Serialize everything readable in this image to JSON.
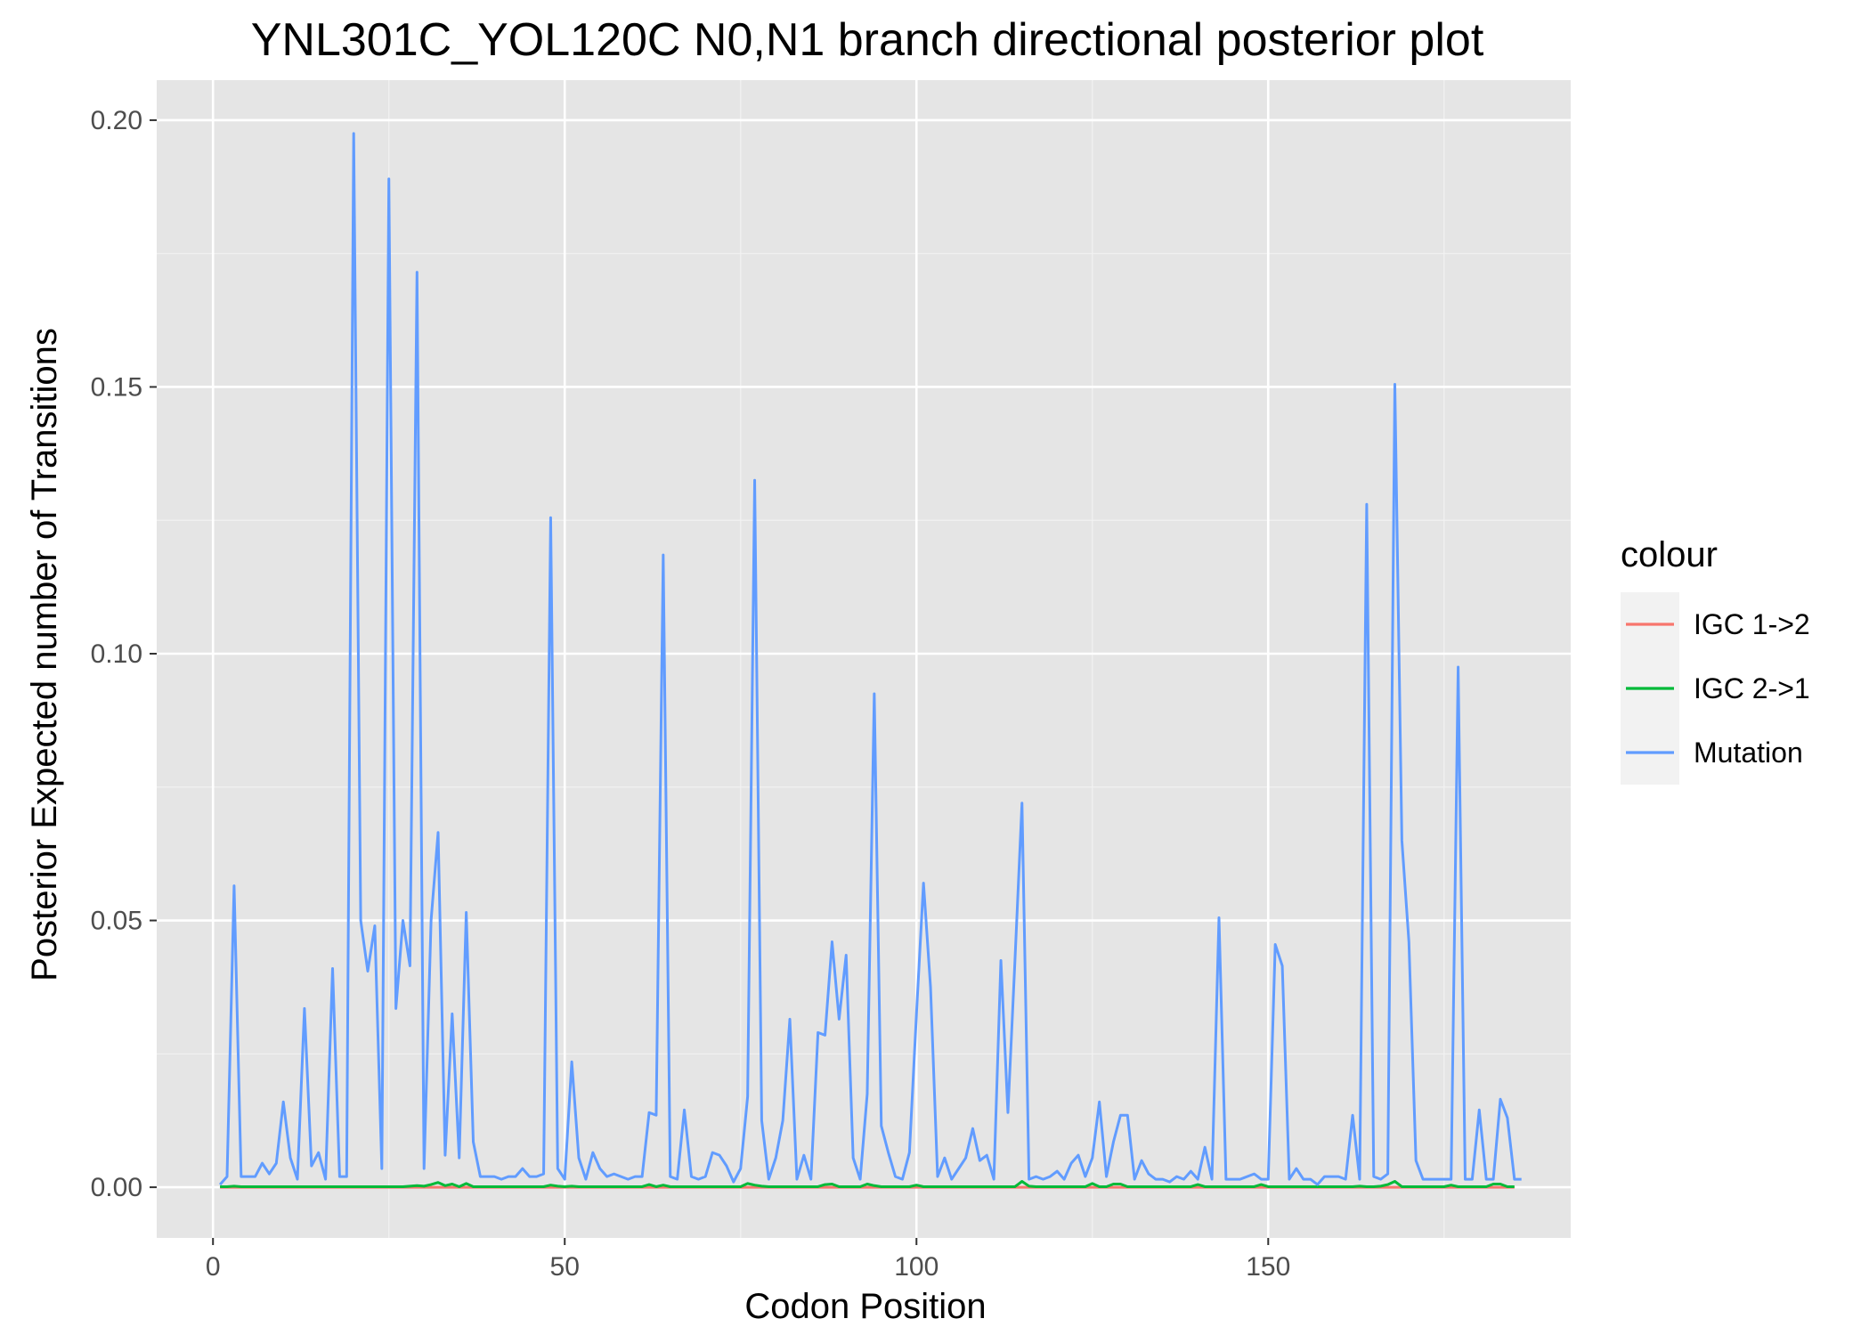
{
  "chart_data": {
    "type": "line",
    "title": "YNL301C_YOL120C N0,N1 branch directional posterior plot",
    "xlabel": "Codon Position",
    "ylabel": "Posterior Expected number of Transitions",
    "xlim": [
      -8,
      193
    ],
    "ylim": [
      -0.0095,
      0.2075
    ],
    "x_ticks": [
      0,
      50,
      100,
      150
    ],
    "x_tick_labels": [
      "0",
      "50",
      "100",
      "150"
    ],
    "y_ticks": [
      0.0,
      0.05,
      0.1,
      0.15,
      0.2
    ],
    "y_tick_labels": [
      "0.00",
      "0.05",
      "0.10",
      "0.15",
      "0.20"
    ],
    "grid": true,
    "legend": {
      "title": "colour",
      "position": "right"
    },
    "series": [
      {
        "name": "IGC 1->2",
        "color": "#F8766D",
        "x_start": 1,
        "values": [
          0,
          0,
          0,
          0,
          0,
          0,
          0,
          0,
          0,
          0,
          0,
          0,
          0,
          0,
          0,
          0,
          0,
          0,
          0,
          0,
          0,
          0,
          0,
          0,
          0,
          0,
          0,
          0,
          0,
          0,
          0,
          0,
          0,
          0,
          0,
          0,
          0,
          0,
          0,
          0,
          0,
          0,
          0,
          0,
          0,
          0,
          0,
          0,
          0,
          0,
          0,
          0,
          0,
          0,
          0,
          0,
          0,
          0,
          0,
          0,
          0,
          0,
          0,
          0,
          0,
          0,
          0,
          0,
          0,
          0,
          0,
          0,
          0,
          0,
          0,
          0,
          0,
          0,
          0,
          0,
          0,
          0,
          0,
          0,
          0,
          0,
          0,
          0,
          0,
          0,
          0,
          0,
          0,
          0,
          0,
          0,
          0,
          0,
          0,
          0,
          0,
          0,
          0,
          0,
          0,
          0,
          0,
          0,
          0,
          0,
          0,
          0,
          0,
          0,
          0,
          0,
          0,
          0,
          0,
          0,
          0,
          0,
          0,
          0,
          0,
          0,
          0,
          0,
          0,
          0,
          0,
          0,
          0,
          0,
          0,
          0,
          0,
          0,
          0,
          0,
          0,
          0,
          0,
          0,
          0,
          0,
          0,
          0,
          0,
          0,
          0,
          0,
          0,
          0,
          0,
          0,
          0,
          0,
          0,
          0,
          0,
          0,
          0,
          0,
          0,
          0,
          0,
          0,
          0,
          0,
          0,
          0,
          0,
          0,
          0,
          0,
          0,
          0,
          0,
          0,
          0,
          0,
          0,
          0,
          0
        ]
      },
      {
        "name": "IGC 2->1",
        "color": "#00BA38",
        "x_start": 1,
        "values": [
          0.0001,
          0.0001,
          0.0002,
          0.0001,
          0.0001,
          0.0001,
          0.0001,
          0.0001,
          0.0001,
          0.0001,
          0.0001,
          0.0001,
          0.0001,
          0.0001,
          0.0001,
          0.0001,
          0.0001,
          0.0001,
          0.0001,
          0.0001,
          0.0001,
          0.0001,
          0.0001,
          0.0001,
          0.0001,
          0.0001,
          0.0001,
          0.0002,
          0.0003,
          0.0002,
          0.0005,
          0.0009,
          0.0003,
          0.0006,
          0.0001,
          0.0007,
          0.0001,
          0.0001,
          0.0001,
          0.0001,
          0.0001,
          0.0001,
          0.0001,
          0.0001,
          0.0001,
          0.0001,
          0.0001,
          0.0004,
          0.0002,
          0.0001,
          0.0002,
          0.0001,
          0.0001,
          0.0001,
          0.0001,
          0.0001,
          0.0001,
          0.0001,
          0.0001,
          0.0001,
          0.0001,
          0.0005,
          0.0001,
          0.0004,
          0.0001,
          0.0001,
          0.0001,
          0.0001,
          0.0001,
          0.0001,
          0.0001,
          0.0001,
          0.0001,
          0.0001,
          0.0001,
          0.0007,
          0.0004,
          0.0002,
          0.0001,
          0.0001,
          0.0001,
          0.0001,
          0.0001,
          0.0001,
          0.0001,
          0.0001,
          0.0005,
          0.0006,
          0.0001,
          0.0001,
          0.0001,
          0.0001,
          0.0006,
          0.0003,
          0.0001,
          0.0001,
          0.0001,
          0.0001,
          0.0001,
          0.0004,
          0.0001,
          0.0001,
          0.0001,
          0.0001,
          0.0001,
          0.0001,
          0.0001,
          0.0001,
          0.0001,
          0.0001,
          0.0001,
          0.0001,
          0.0001,
          0.0001,
          0.0011,
          0.0002,
          0.0001,
          0.0001,
          0.0001,
          0.0001,
          0.0001,
          0.0001,
          0.0001,
          0.0001,
          0.0007,
          0.0001,
          0.0001,
          0.0006,
          0.0006,
          0.0001,
          0.0001,
          0.0001,
          0.0001,
          0.0001,
          0.0001,
          0.0001,
          0.0001,
          0.0001,
          0.0001,
          0.0005,
          0.0001,
          0.0001,
          0.0001,
          0.0001,
          0.0001,
          0.0001,
          0.0001,
          0.0001,
          0.0005,
          0.0001,
          0.0001,
          0.0001,
          0.0001,
          0.0001,
          0.0001,
          0.0001,
          0.0001,
          0.0001,
          0.0001,
          0.0001,
          0.0001,
          0.0001,
          0.0002,
          0.0001,
          0.0001,
          0.0002,
          0.0005,
          0.0011,
          0.0001,
          0.0001,
          0.0001,
          0.0001,
          0.0001,
          0.0001,
          0.0001,
          0.0004,
          0.0001,
          0.0001,
          0.0001,
          0.0001,
          0.0001,
          0.0006,
          0.0006,
          0.0001,
          0.0001
        ]
      },
      {
        "name": "Mutation",
        "color": "#619CFF",
        "x_start": 1,
        "values": [
          0.0005,
          0.002,
          0.0565,
          0.002,
          0.002,
          0.002,
          0.0045,
          0.0025,
          0.0045,
          0.016,
          0.0055,
          0.0015,
          0.0335,
          0.004,
          0.0065,
          0.0015,
          0.041,
          0.002,
          0.002,
          0.1975,
          0.05,
          0.0405,
          0.049,
          0.0035,
          0.189,
          0.0335,
          0.05,
          0.0415,
          0.1715,
          0.0035,
          0.05,
          0.0665,
          0.006,
          0.0325,
          0.0055,
          0.0515,
          0.0085,
          0.002,
          0.002,
          0.002,
          0.0015,
          0.002,
          0.002,
          0.0035,
          0.002,
          0.002,
          0.0025,
          0.1255,
          0.0035,
          0.0015,
          0.0235,
          0.0055,
          0.0015,
          0.0065,
          0.0035,
          0.002,
          0.0025,
          0.002,
          0.0015,
          0.002,
          0.002,
          0.014,
          0.0135,
          0.1185,
          0.002,
          0.0015,
          0.0145,
          0.002,
          0.0015,
          0.002,
          0.0065,
          0.006,
          0.004,
          0.001,
          0.0035,
          0.017,
          0.1325,
          0.0125,
          0.0015,
          0.0055,
          0.0125,
          0.0315,
          0.0015,
          0.006,
          0.0015,
          0.029,
          0.0285,
          0.046,
          0.0315,
          0.0435,
          0.0055,
          0.0015,
          0.0175,
          0.0925,
          0.0115,
          0.0065,
          0.002,
          0.0015,
          0.0065,
          0.0325,
          0.057,
          0.0375,
          0.002,
          0.0055,
          0.0015,
          0.0035,
          0.0055,
          0.011,
          0.005,
          0.006,
          0.0015,
          0.0425,
          0.014,
          0.0425,
          0.072,
          0.0015,
          0.002,
          0.0015,
          0.002,
          0.003,
          0.0015,
          0.0045,
          0.006,
          0.002,
          0.0055,
          0.016,
          0.002,
          0.0085,
          0.0135,
          0.0135,
          0.0015,
          0.005,
          0.0025,
          0.0015,
          0.0015,
          0.001,
          0.002,
          0.0015,
          0.003,
          0.0015,
          0.0075,
          0.0015,
          0.0505,
          0.0015,
          0.0015,
          0.0015,
          0.002,
          0.0025,
          0.0015,
          0.0015,
          0.0455,
          0.0415,
          0.0015,
          0.0035,
          0.0015,
          0.0015,
          0.0005,
          0.002,
          0.002,
          0.002,
          0.0015,
          0.0135,
          0.0015,
          0.128,
          0.002,
          0.0015,
          0.0025,
          0.1505,
          0.065,
          0.046,
          0.005,
          0.0015,
          0.0015,
          0.0015,
          0.0015,
          0.0015,
          0.0975,
          0.0015,
          0.0015,
          0.0145,
          0.0015,
          0.0015,
          0.0165,
          0.013,
          0.0015,
          0.0015
        ]
      }
    ]
  }
}
